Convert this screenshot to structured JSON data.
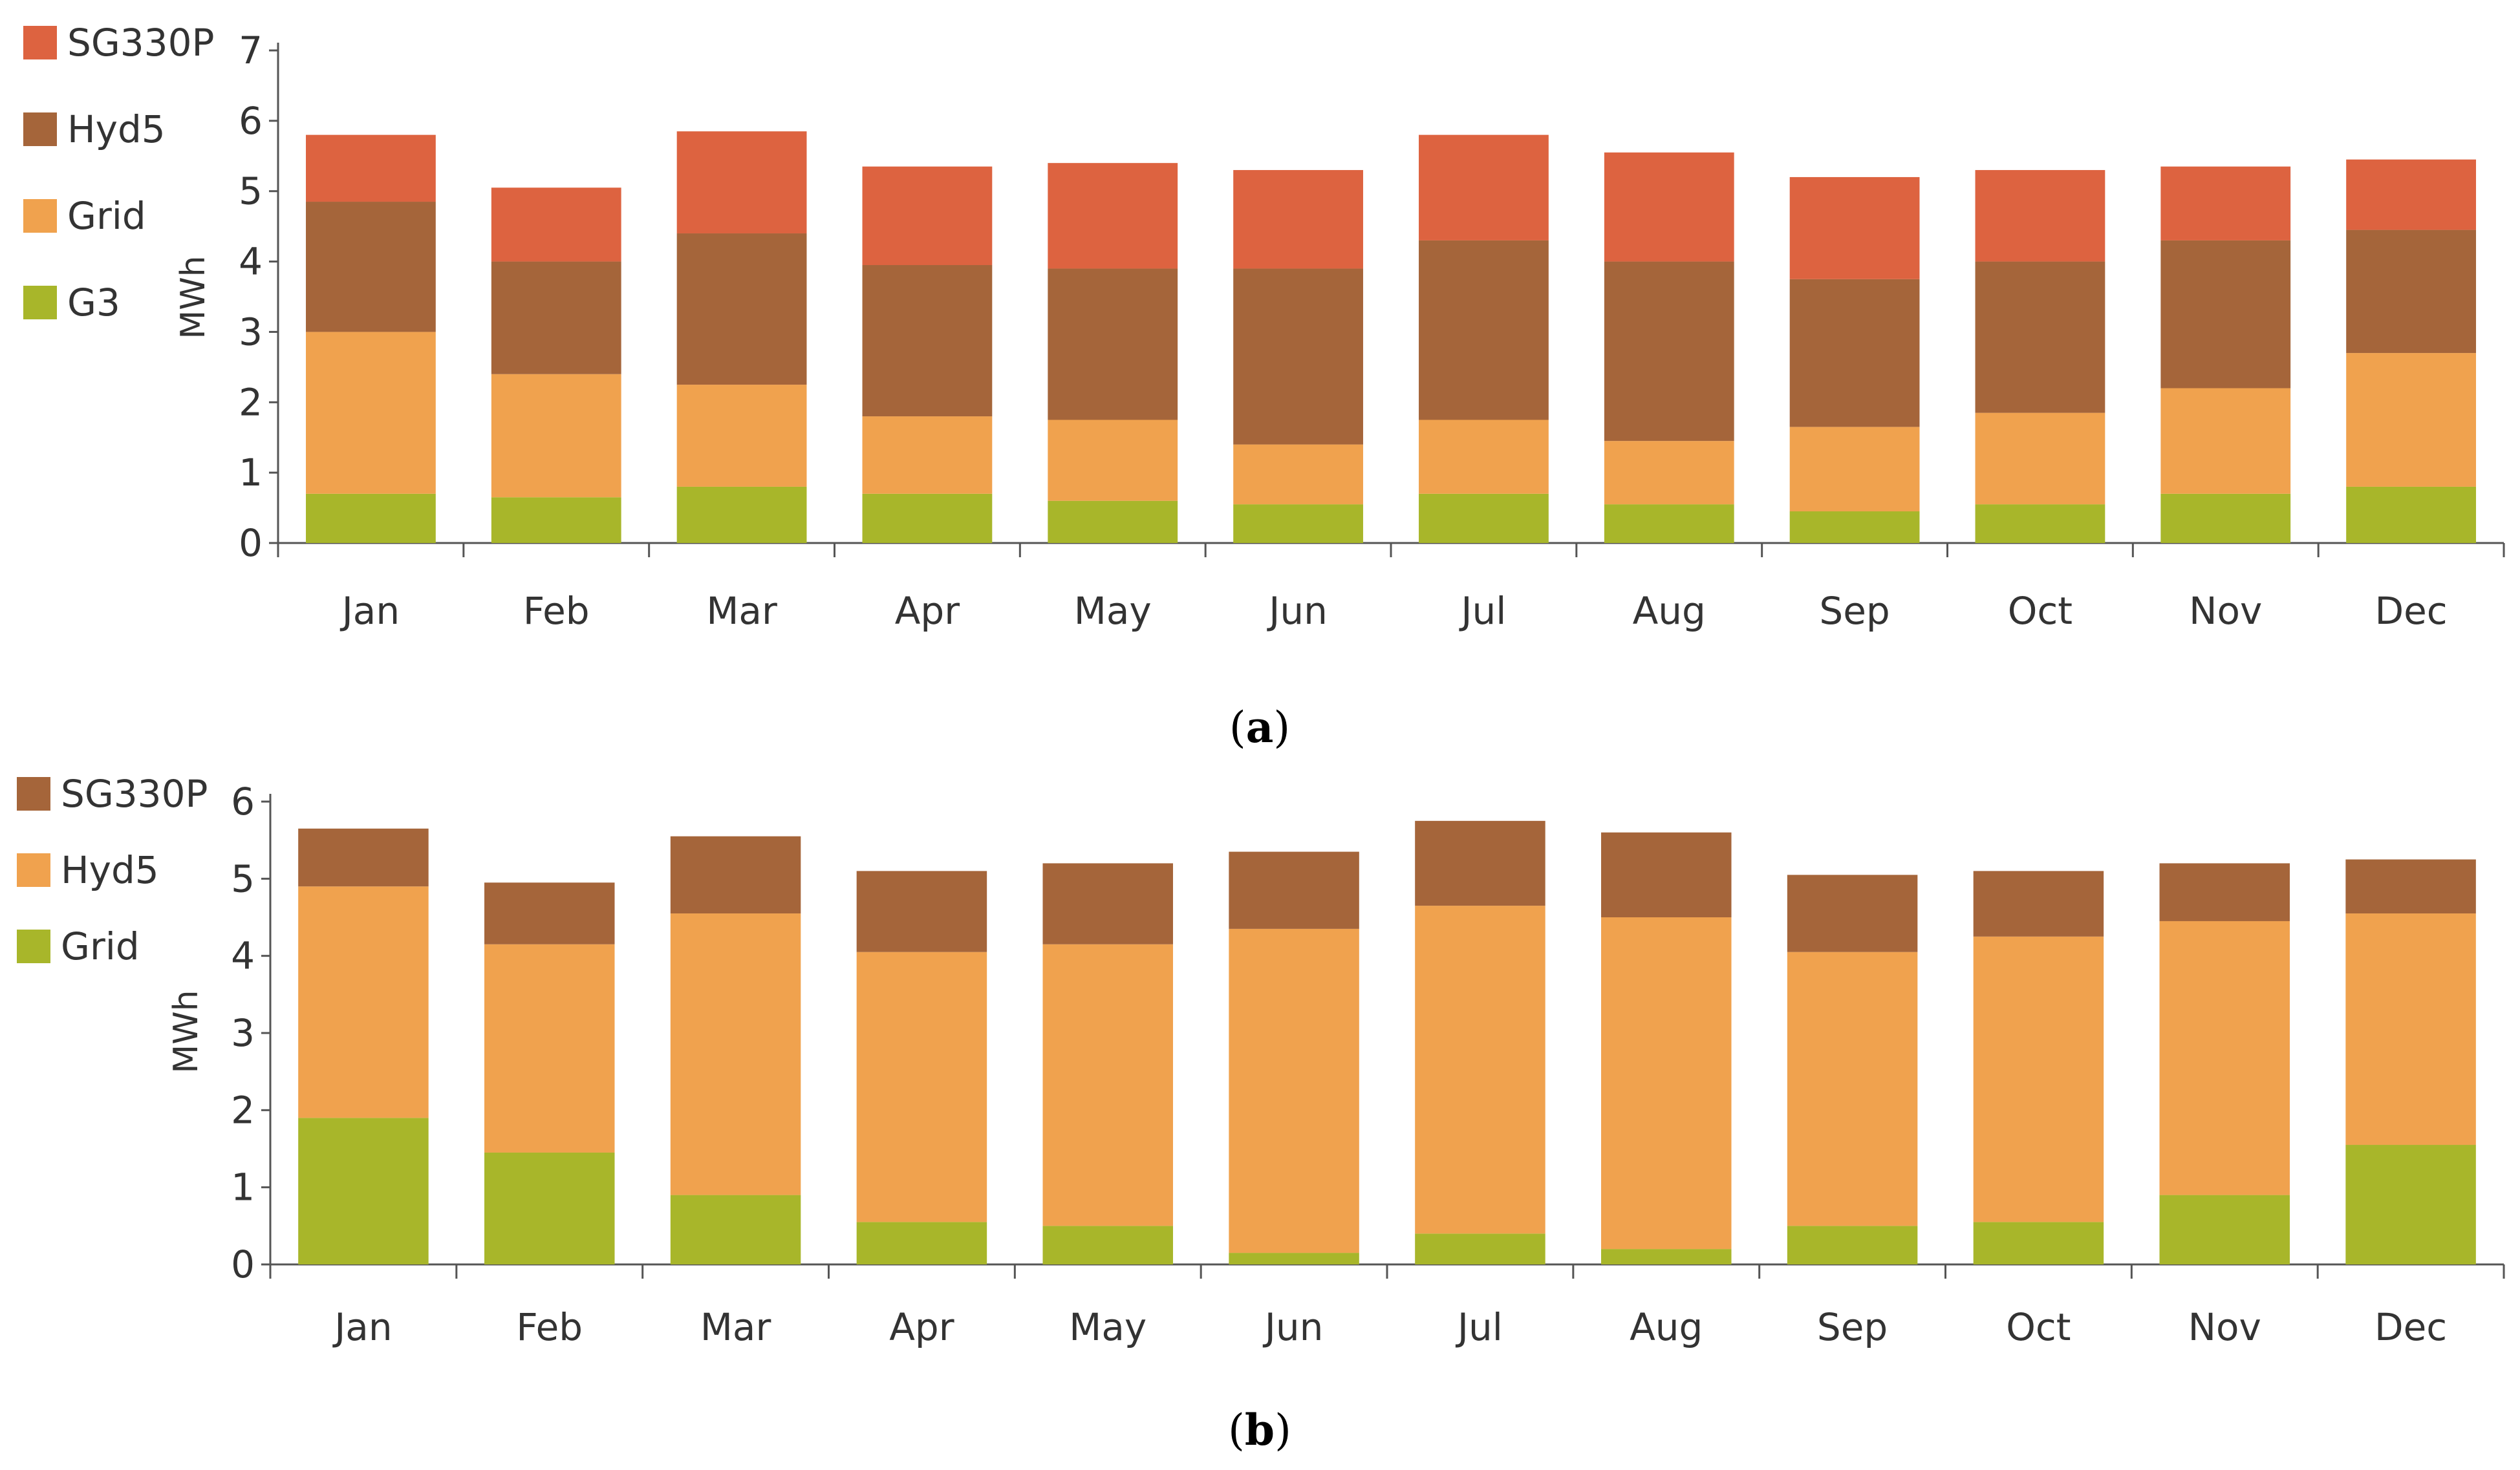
{
  "chart_data": [
    {
      "type": "bar",
      "stacked": true,
      "panel_caption": {
        "open": "(",
        "letter": "a",
        "close": ")"
      },
      "title": "",
      "xlabel": "",
      "ylabel": "MWh",
      "ylim": [
        0,
        7
      ],
      "yticks": [
        0,
        1,
        2,
        3,
        4,
        5,
        6,
        7
      ],
      "grid": false,
      "legend_position": "left",
      "categories": [
        "Jan",
        "Feb",
        "Mar",
        "Apr",
        "May",
        "Jun",
        "Jul",
        "Aug",
        "Sep",
        "Oct",
        "Nov",
        "Dec"
      ],
      "series": [
        {
          "name": "G3",
          "color": "#a8b62a",
          "values": [
            0.7,
            0.65,
            0.8,
            0.7,
            0.6,
            0.55,
            0.7,
            0.55,
            0.45,
            0.55,
            0.7,
            0.8
          ]
        },
        {
          "name": "Grid",
          "color": "#f0a24e",
          "values": [
            2.3,
            1.75,
            1.45,
            1.1,
            1.15,
            0.85,
            1.05,
            0.9,
            1.2,
            1.3,
            1.5,
            1.9
          ]
        },
        {
          "name": "Hyd5",
          "color": "#a5653a",
          "values": [
            1.85,
            1.6,
            2.15,
            2.15,
            2.15,
            2.5,
            2.55,
            2.55,
            2.1,
            2.15,
            2.1,
            1.75
          ]
        },
        {
          "name": "SG330P",
          "color": "#dd6340",
          "values": [
            0.95,
            1.05,
            1.45,
            1.4,
            1.5,
            1.4,
            1.5,
            1.55,
            1.45,
            1.3,
            1.05,
            1.0
          ]
        }
      ],
      "legend_order": [
        "SG330P",
        "Hyd5",
        "Grid",
        "G3"
      ]
    },
    {
      "type": "bar",
      "stacked": true,
      "panel_caption": {
        "open": "(",
        "letter": "b",
        "close": ")"
      },
      "title": "",
      "xlabel": "",
      "ylabel": "MWh",
      "ylim": [
        0,
        6
      ],
      "yticks": [
        0,
        1,
        2,
        3,
        4,
        5,
        6
      ],
      "grid": false,
      "legend_position": "left",
      "categories": [
        "Jan",
        "Feb",
        "Mar",
        "Apr",
        "May",
        "Jun",
        "Jul",
        "Aug",
        "Sep",
        "Oct",
        "Nov",
        "Dec"
      ],
      "series": [
        {
          "name": "Grid",
          "color": "#a8b62a",
          "values": [
            1.9,
            1.45,
            0.9,
            0.55,
            0.5,
            0.15,
            0.4,
            0.2,
            0.5,
            0.55,
            0.9,
            1.55
          ]
        },
        {
          "name": "Hyd5",
          "color": "#f0a24e",
          "values": [
            3.0,
            2.7,
            3.65,
            3.5,
            3.65,
            4.2,
            4.25,
            4.3,
            3.55,
            3.7,
            3.55,
            3.0
          ]
        },
        {
          "name": "SG330P",
          "color": "#a5653a",
          "values": [
            0.75,
            0.8,
            1.0,
            1.05,
            1.05,
            1.0,
            1.1,
            1.1,
            1.0,
            0.85,
            0.75,
            0.7
          ]
        }
      ],
      "legend_order": [
        "SG330P",
        "Hyd5",
        "Grid"
      ]
    }
  ]
}
